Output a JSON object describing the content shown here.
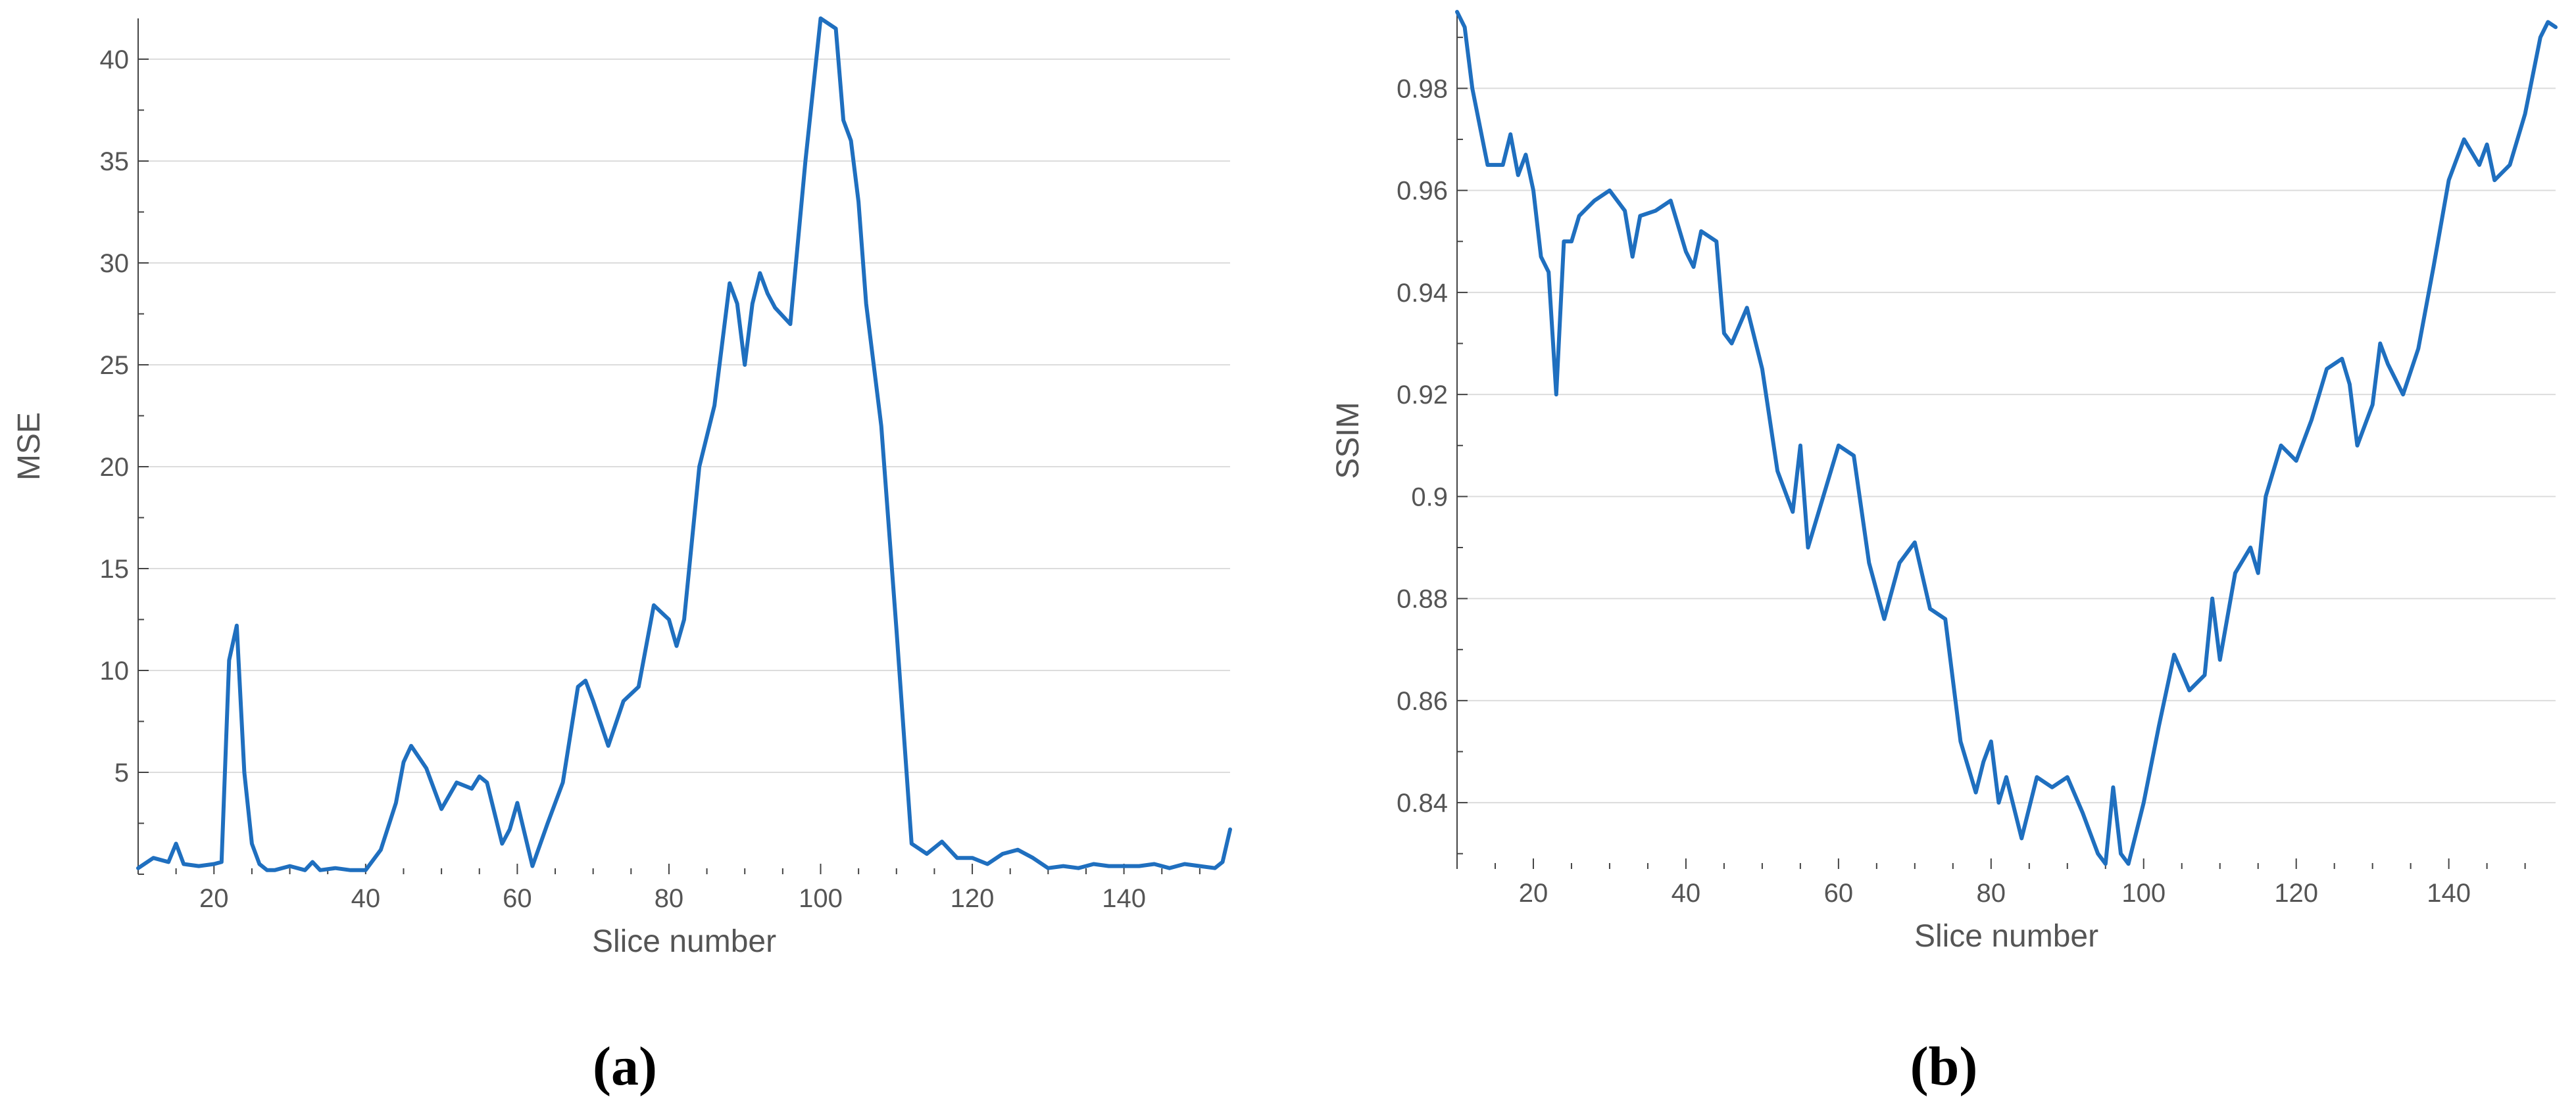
{
  "chart_data": [
    {
      "type": "line",
      "panel_label": "(a)",
      "xlabel": "Slice number",
      "ylabel": "MSE",
      "xlim": [
        10,
        154
      ],
      "ylim": [
        0,
        42
      ],
      "xticks": [
        20,
        40,
        60,
        80,
        100,
        120,
        140
      ],
      "yticks": [
        5,
        10,
        15,
        20,
        25,
        30,
        35,
        40
      ],
      "ytick_labels": [
        "5",
        "10",
        "15",
        "20",
        "25",
        "30",
        "35",
        "40"
      ],
      "grid": "horizontal",
      "color": "#1f6fbf",
      "x": [
        10,
        12,
        14,
        15,
        16,
        18,
        20,
        21,
        22,
        23,
        24,
        25,
        26,
        27,
        28,
        30,
        32,
        33,
        34,
        36,
        38,
        40,
        42,
        44,
        45,
        46,
        48,
        50,
        52,
        54,
        55,
        56,
        58,
        59,
        60,
        62,
        64,
        66,
        68,
        69,
        70,
        72,
        74,
        76,
        78,
        80,
        81,
        82,
        84,
        86,
        88,
        89,
        90,
        91,
        92,
        93,
        94,
        96,
        98,
        100,
        102,
        103,
        104,
        105,
        106,
        108,
        110,
        112,
        114,
        116,
        118,
        120,
        122,
        124,
        126,
        128,
        130,
        132,
        134,
        136,
        138,
        140,
        142,
        144,
        146,
        148,
        150,
        152,
        153,
        154
      ],
      "y": [
        0.3,
        0.8,
        0.6,
        1.5,
        0.5,
        0.4,
        0.5,
        0.6,
        10.5,
        12.2,
        5,
        1.5,
        0.5,
        0.2,
        0.2,
        0.4,
        0.2,
        0.6,
        0.2,
        0.3,
        0.2,
        0.2,
        1.2,
        3.5,
        5.5,
        6.3,
        5.2,
        3.2,
        4.5,
        4.2,
        4.8,
        4.5,
        1.5,
        2.2,
        3.5,
        0.4,
        2.5,
        4.5,
        9.2,
        9.5,
        8.5,
        6.3,
        8.5,
        9.2,
        13.2,
        12.5,
        11.2,
        12.5,
        20,
        23,
        29,
        28,
        25,
        28,
        29.5,
        28.5,
        27.8,
        27,
        35,
        42,
        41.5,
        37,
        36,
        33,
        28,
        22,
        12,
        1.5,
        1,
        1.6,
        0.8,
        0.8,
        0.5,
        1,
        1.2,
        0.8,
        0.3,
        0.4,
        0.3,
        0.5,
        0.4,
        0.4,
        0.4,
        0.5,
        0.3,
        0.5,
        0.4,
        0.3,
        0.6,
        2.2
      ]
    },
    {
      "type": "line",
      "panel_label": "(b)",
      "xlabel": "Slice number",
      "ylabel": "SSIM",
      "xlim": [
        10,
        154
      ],
      "ylim": [
        0.827,
        0.995
      ],
      "xticks": [
        20,
        40,
        60,
        80,
        100,
        120,
        140
      ],
      "yticks": [
        0.84,
        0.86,
        0.88,
        0.9,
        0.92,
        0.94,
        0.96,
        0.98
      ],
      "ytick_labels": [
        "0.84",
        "0.86",
        "0.88",
        "0.9",
        "0.92",
        "0.94",
        "0.96",
        "0.98"
      ],
      "grid": "horizontal",
      "color": "#1f6fbf",
      "x": [
        10,
        11,
        12,
        14,
        16,
        17,
        18,
        19,
        20,
        21,
        22,
        23,
        24,
        25,
        26,
        28,
        30,
        32,
        33,
        34,
        36,
        38,
        40,
        41,
        42,
        44,
        45,
        46,
        48,
        50,
        52,
        54,
        55,
        56,
        58,
        60,
        62,
        64,
        66,
        68,
        70,
        72,
        74,
        76,
        78,
        79,
        80,
        81,
        82,
        84,
        86,
        88,
        90,
        92,
        94,
        95,
        96,
        97,
        98,
        100,
        102,
        104,
        106,
        108,
        109,
        110,
        112,
        114,
        115,
        116,
        118,
        120,
        122,
        124,
        126,
        127,
        128,
        130,
        131,
        132,
        134,
        136,
        138,
        140,
        142,
        144,
        145,
        146,
        148,
        150,
        152,
        153,
        154
      ],
      "y": [
        0.995,
        0.992,
        0.98,
        0.965,
        0.965,
        0.971,
        0.963,
        0.967,
        0.96,
        0.947,
        0.944,
        0.92,
        0.95,
        0.95,
        0.955,
        0.958,
        0.96,
        0.956,
        0.947,
        0.955,
        0.956,
        0.958,
        0.948,
        0.945,
        0.952,
        0.95,
        0.932,
        0.93,
        0.937,
        0.925,
        0.905,
        0.897,
        0.91,
        0.89,
        0.9,
        0.91,
        0.908,
        0.887,
        0.876,
        0.887,
        0.891,
        0.878,
        0.876,
        0.852,
        0.842,
        0.848,
        0.852,
        0.84,
        0.845,
        0.833,
        0.845,
        0.843,
        0.845,
        0.838,
        0.83,
        0.828,
        0.843,
        0.83,
        0.828,
        0.84,
        0.855,
        0.869,
        0.862,
        0.865,
        0.88,
        0.868,
        0.885,
        0.89,
        0.885,
        0.9,
        0.91,
        0.907,
        0.915,
        0.925,
        0.927,
        0.922,
        0.91,
        0.918,
        0.93,
        0.926,
        0.92,
        0.929,
        0.945,
        0.962,
        0.97,
        0.965,
        0.969,
        0.962,
        0.965,
        0.975,
        0.99,
        0.993,
        0.992
      ]
    }
  ]
}
